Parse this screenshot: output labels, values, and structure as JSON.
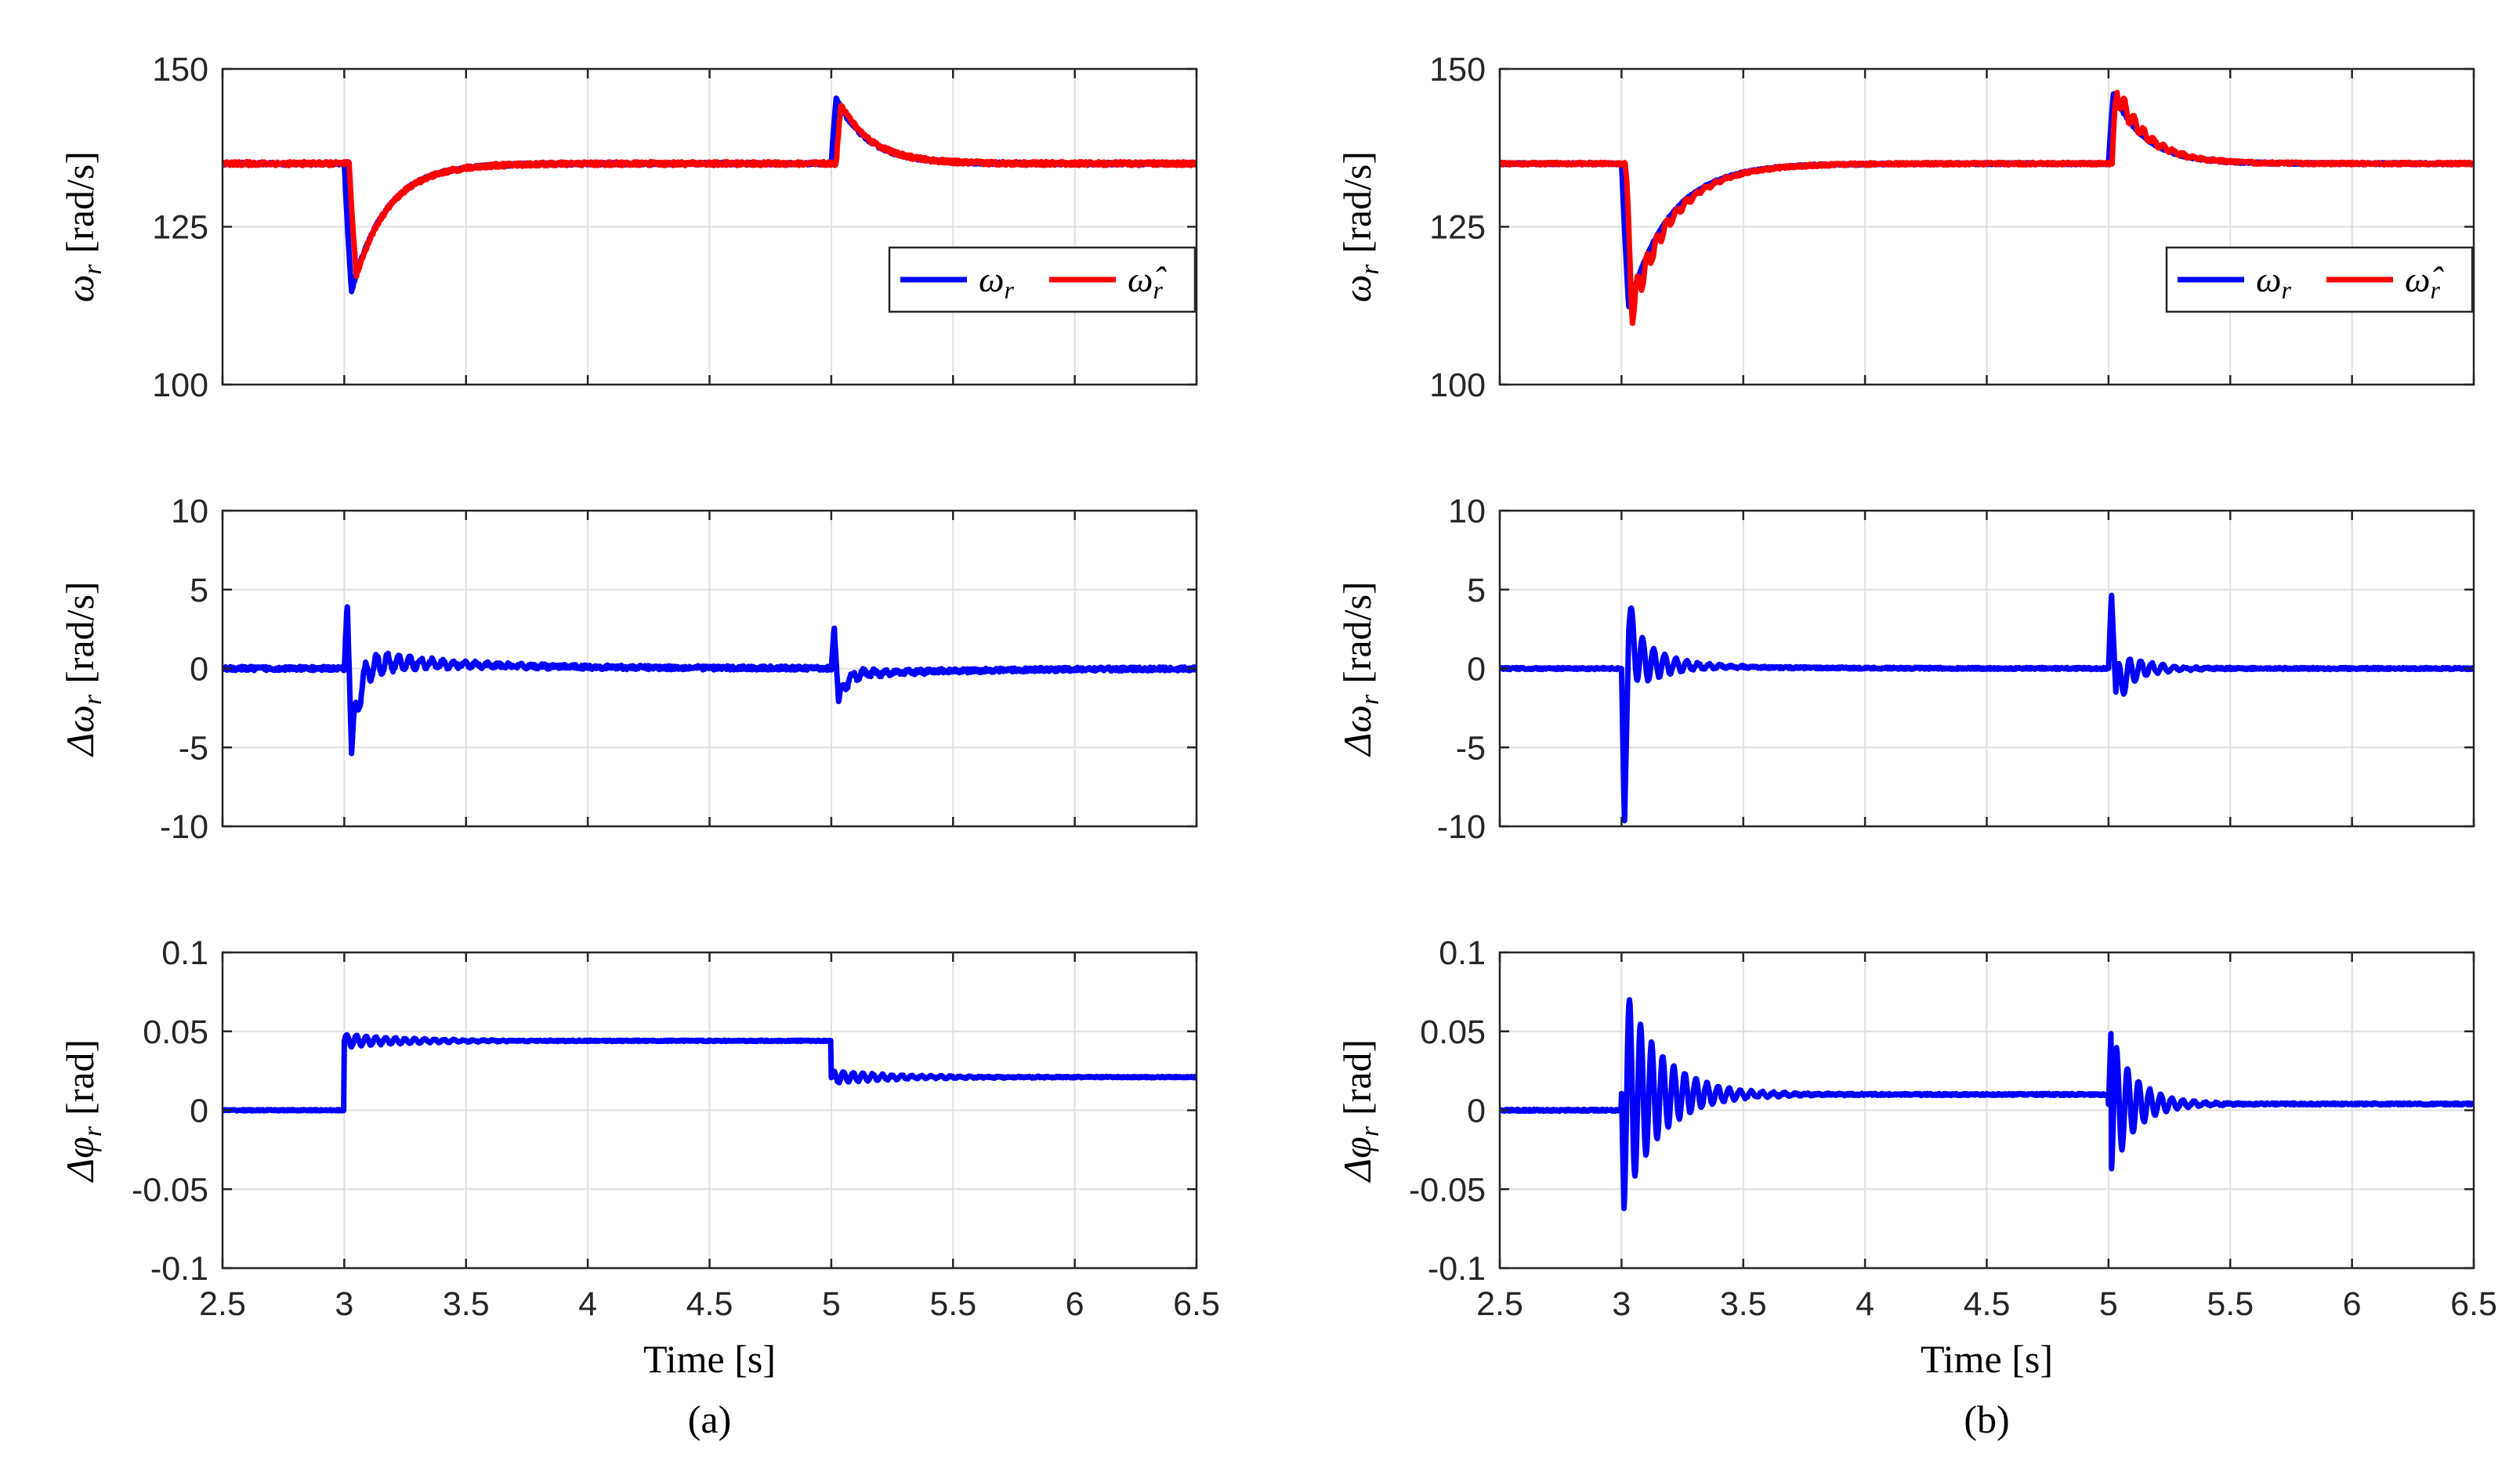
{
  "chart_data": [
    {
      "type": "line",
      "panel": "a-top",
      "ylabel_symbol": "ω",
      "ylabel_sub": "r",
      "ylabel_unit": "[rad/s]",
      "xlim": [
        2.5,
        6.5
      ],
      "ylim": [
        100,
        150
      ],
      "yticks": [
        "100",
        "125",
        "150"
      ],
      "yticks_values": [
        100,
        125,
        150
      ],
      "grid": true,
      "legend": {
        "placement": "right",
        "entries": [
          {
            "symbol": "ω",
            "sub": "r"
          },
          {
            "symbol": "ω̂",
            "sub": "r"
          }
        ]
      },
      "series": [
        {
          "name": "ω_r",
          "color": "#0000ff",
          "model": "speed",
          "params": {
            "base": 135,
            "drop": 25,
            "drop_tau": 0.14,
            "rise": 12,
            "rise_tau": 0.13,
            "noise": 0.4,
            "osc_amp": 0,
            "osc_freq": 25,
            "osc_tau": 0.1
          }
        },
        {
          "name": "ω̂_r",
          "color": "#ff0000",
          "model": "speed",
          "params": {
            "base": 135,
            "drop": 22,
            "drop_tau": 0.14,
            "rise": 11,
            "rise_tau": 0.13,
            "noise": 0.6,
            "osc_amp": 0,
            "osc_freq": 25,
            "osc_tau": 0.1,
            "lag": 0.02
          }
        }
      ]
    },
    {
      "type": "line",
      "panel": "a-mid",
      "ylabel_symbol": "Δω",
      "ylabel_sub": "r",
      "ylabel_unit": "[rad/s]",
      "xlim": [
        2.5,
        6.5
      ],
      "ylim": [
        -10,
        10
      ],
      "yticks": [
        "-10",
        "-5",
        "0",
        "5",
        "10"
      ],
      "yticks_values": [
        -10,
        -5,
        0,
        5,
        10
      ],
      "grid": true,
      "series": [
        {
          "name": "Δω_r",
          "color": "#0000ff",
          "model": "error",
          "params": {
            "events": [
              {
                "t": 3.0,
                "peaks": [
                  4.3,
                  -5.4
                ],
                "osc_amp": 1.0,
                "osc_freq": 22,
                "osc_tau": 0.25,
                "offset": 0.5,
                "offset_tau": 0.6
              },
              {
                "t": 5.0,
                "peaks": [
                  2.6,
                  -2.2
                ],
                "osc_amp": 0.4,
                "osc_freq": 22,
                "osc_tau": 0.2,
                "offset": -0.4,
                "offset_tau": 0.5
              }
            ],
            "noise": 0.25
          }
        }
      ]
    },
    {
      "type": "line",
      "panel": "a-bot",
      "ylabel_symbol": "Δφ",
      "ylabel_sub": "r",
      "ylabel_unit": "[rad]",
      "xlim": [
        2.5,
        6.5
      ],
      "ylim": [
        -0.1,
        0.1
      ],
      "yticks": [
        "-0.1",
        "-0.05",
        "0",
        "0.05",
        "0.1"
      ],
      "yticks_values": [
        -0.1,
        -0.05,
        0,
        0.05,
        0.1
      ],
      "grid": true,
      "xticks": [
        "2.5",
        "3",
        "3.5",
        "4",
        "4.5",
        "5",
        "5.5",
        "6",
        "6.5"
      ],
      "xticks_values": [
        2.5,
        3,
        3.5,
        4,
        4.5,
        5,
        5.5,
        6,
        6.5
      ],
      "xlabel": "Time [s]",
      "caption": "(a)",
      "series": [
        {
          "name": "Δφ_r",
          "color": "#0000ff",
          "model": "steps",
          "params": {
            "levels": [
              [
                2.5,
                0.0
              ],
              [
                3.0,
                0.044
              ],
              [
                5.0,
                0.021
              ]
            ],
            "osc_amp": 0.004,
            "osc_freq": 25,
            "osc_tau": 0.25,
            "noise": 0.0008
          }
        }
      ]
    },
    {
      "type": "line",
      "panel": "b-top",
      "ylabel_symbol": "ω",
      "ylabel_sub": "r",
      "ylabel_unit": "[rad/s]",
      "xlim": [
        2.5,
        6.5
      ],
      "ylim": [
        100,
        150
      ],
      "yticks": [
        "100",
        "125",
        "150"
      ],
      "yticks_values": [
        100,
        125,
        150
      ],
      "grid": true,
      "legend": {
        "placement": "right",
        "entries": [
          {
            "symbol": "ω",
            "sub": "r"
          },
          {
            "symbol": "ω̂",
            "sub": "r"
          }
        ]
      },
      "series": [
        {
          "name": "ω_r",
          "color": "#0000ff",
          "model": "speed",
          "params": {
            "base": 135,
            "drop": 27,
            "drop_tau": 0.17,
            "rise": 13,
            "rise_tau": 0.13,
            "noise": 0.3,
            "osc_amp": 0,
            "osc_freq": 25,
            "osc_tau": 0.1
          }
        },
        {
          "name": "ω̂_r",
          "color": "#ff0000",
          "model": "speed",
          "params": {
            "base": 135,
            "drop": 27,
            "drop_tau": 0.17,
            "rise": 13,
            "rise_tau": 0.13,
            "noise": 0.4,
            "osc_amp": 3.5,
            "osc_freq": 25,
            "osc_tau": 0.12,
            "lag": 0.015
          }
        }
      ]
    },
    {
      "type": "line",
      "panel": "b-mid",
      "ylabel_symbol": "Δω",
      "ylabel_sub": "r",
      "ylabel_unit": "[rad/s]",
      "xlim": [
        2.5,
        6.5
      ],
      "ylim": [
        -10,
        10
      ],
      "yticks": [
        "-10",
        "-5",
        "0",
        "5",
        "10"
      ],
      "yticks_values": [
        -10,
        -5,
        0,
        5,
        10
      ],
      "grid": true,
      "series": [
        {
          "name": "Δω_r",
          "color": "#0000ff",
          "model": "error",
          "params": {
            "events": [
              {
                "t": 3.0,
                "peaks": [
                  -10.0,
                  2.5
                ],
                "osc_amp": 2.2,
                "osc_freq": 22,
                "osc_tau": 0.12,
                "offset": 0.3,
                "offset_tau": 0.4
              },
              {
                "t": 5.0,
                "peaks": [
                  4.8,
                  -1.5
                ],
                "osc_amp": 1.5,
                "osc_freq": 22,
                "osc_tau": 0.1,
                "offset": 0,
                "offset_tau": 0.4
              }
            ],
            "noise": 0.12
          }
        }
      ]
    },
    {
      "type": "line",
      "panel": "b-bot",
      "ylabel_symbol": "Δφ",
      "ylabel_sub": "r",
      "ylabel_unit": "[rad]",
      "xlim": [
        2.5,
        6.5
      ],
      "ylim": [
        -0.1,
        0.1
      ],
      "yticks": [
        "-0.1",
        "-0.05",
        "0",
        "0.05",
        "0.1"
      ],
      "yticks_values": [
        -0.1,
        -0.05,
        0,
        0.05,
        0.1
      ],
      "grid": true,
      "xticks": [
        "2.5",
        "3",
        "3.5",
        "4",
        "4.5",
        "5",
        "5.5",
        "6",
        "6.5"
      ],
      "xticks_values": [
        2.5,
        3,
        3.5,
        4,
        4.5,
        5,
        5.5,
        6,
        6.5
      ],
      "xlabel": "Time [s]",
      "caption": "(b)",
      "series": [
        {
          "name": "Δφ_r",
          "color": "#0000ff",
          "model": "steps",
          "params": {
            "levels": [
              [
                2.5,
                0.0
              ],
              [
                3.0,
                0.01
              ],
              [
                5.0,
                0.004
              ]
            ],
            "spikes": [
              {
                "t": 3.0,
                "first": -0.072,
                "amp": 0.07,
                "freq": 22,
                "tau": 0.15
              },
              {
                "t": 5.0,
                "first": 0.045,
                "amp": 0.045,
                "freq": 22,
                "tau": 0.1
              }
            ],
            "osc_amp": 0,
            "osc_freq": 25,
            "osc_tau": 0.2,
            "noise": 0.0012
          }
        }
      ]
    }
  ]
}
